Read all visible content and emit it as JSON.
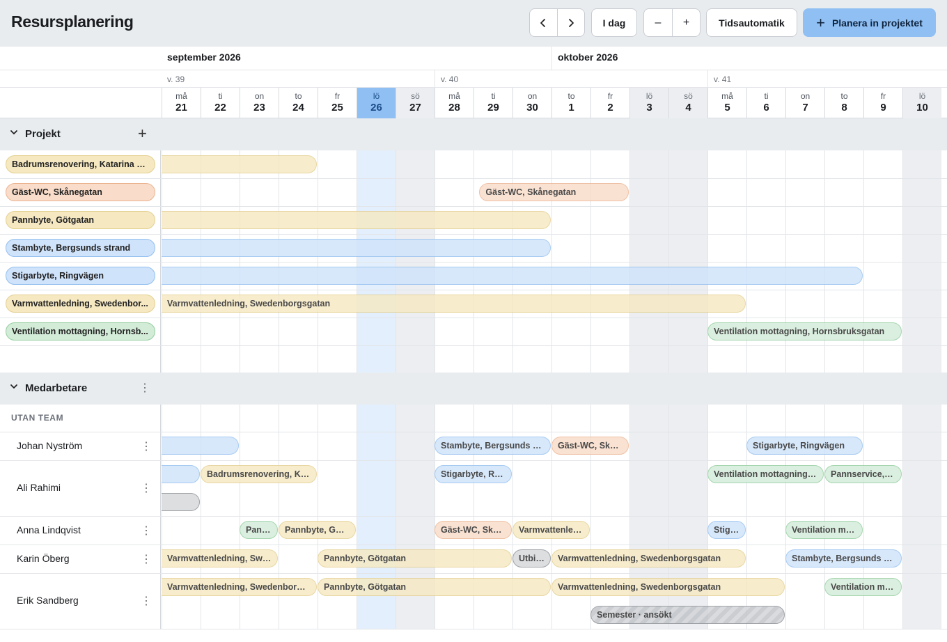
{
  "app": {
    "title": "Resursplanering"
  },
  "toolbar": {
    "prev_label": "‹",
    "next_label": "›",
    "today_label": "I dag",
    "zoom_out_label": "–",
    "zoom_in_label": "+",
    "auto_label": "Tidsautomatik",
    "plan_label": "Planera in projektet",
    "plan_icon": "+"
  },
  "calendar": {
    "months": [
      {
        "label": "september 2026"
      },
      {
        "label": "oktober 2026"
      }
    ],
    "weeks": [
      {
        "label": "v. 39"
      },
      {
        "label": "v. 40"
      },
      {
        "label": "v. 41"
      }
    ],
    "days": [
      {
        "name": "må",
        "date": "21"
      },
      {
        "name": "ti",
        "date": "22"
      },
      {
        "name": "on",
        "date": "23"
      },
      {
        "name": "to",
        "date": "24"
      },
      {
        "name": "fr",
        "date": "25"
      },
      {
        "name": "lö",
        "date": "26",
        "today": true
      },
      {
        "name": "sö",
        "date": "27",
        "weekend": true
      },
      {
        "name": "må",
        "date": "28"
      },
      {
        "name": "ti",
        "date": "29"
      },
      {
        "name": "on",
        "date": "30"
      },
      {
        "name": "to",
        "date": "1"
      },
      {
        "name": "fr",
        "date": "2"
      },
      {
        "name": "lö",
        "date": "3",
        "weekend": true
      },
      {
        "name": "sö",
        "date": "4",
        "weekend": true
      },
      {
        "name": "må",
        "date": "5"
      },
      {
        "name": "ti",
        "date": "6"
      },
      {
        "name": "on",
        "date": "7"
      },
      {
        "name": "to",
        "date": "8"
      },
      {
        "name": "fr",
        "date": "9"
      },
      {
        "name": "lö",
        "date": "10",
        "weekend": true
      }
    ]
  },
  "projects": {
    "label": "Projekt",
    "add_icon": "+",
    "rows": [
      {
        "name": "Badrumsrenovering, Katarina Bangata",
        "display": "Badrumsrenovering, Katarina B...",
        "color": "yellow",
        "bar_label": ""
      },
      {
        "name": "Gäst-WC, Skånegatan",
        "display": "Gäst-WC, Skånegatan",
        "color": "orange",
        "bar_label": "Gäst-WC, Skånegatan"
      },
      {
        "name": "Pannbyte, Götgatan",
        "display": "Pannbyte, Götgatan",
        "color": "yellow",
        "bar_label": ""
      },
      {
        "name": "Stambyte, Bergsunds strand",
        "display": "Stambyte, Bergsunds strand",
        "color": "blue",
        "bar_label": ""
      },
      {
        "name": "Stigarbyte, Ringvägen",
        "display": "Stigarbyte, Ringvägen",
        "color": "blue",
        "bar_label": ""
      },
      {
        "name": "Varmvattenledning, Swedenborgsgatan",
        "display": "Varmvattenledning, Swedenbor...",
        "color": "yellow",
        "bar_label": "Varmvattenledning, Swedenborgsgatan"
      },
      {
        "name": "Ventilation mottagning, Hornsbruksgatan",
        "display": "Ventilation mottagning, Hornsb...",
        "color": "green",
        "bar_label": "Ventilation mottagning, Hornsbruksgatan"
      }
    ]
  },
  "staff": {
    "label": "Medarbetare",
    "menu_icon": "⋮",
    "team_label": "UTAN TEAM",
    "people": [
      {
        "name": "Johan Nyström",
        "bookings": [
          {
            "label": "",
            "color": "blue"
          },
          {
            "label": "Stambyte, Bergsunds strand",
            "color": "blue"
          },
          {
            "label": "Gäst-WC, Skånegatan",
            "color": "orange"
          },
          {
            "label": "Stigarbyte, Ringvägen",
            "color": "blue"
          }
        ]
      },
      {
        "name": "Ali Rahimi",
        "bookings": [
          {
            "label": "",
            "color": "blue"
          },
          {
            "label": "Badrumsrenovering, Katarina Bangata",
            "color": "yellow"
          },
          {
            "label": "Stigarbyte, Ringvägen",
            "color": "blue"
          },
          {
            "label": "Ventilation mottagning, Hornsbruksgatan",
            "color": "green"
          },
          {
            "label": "Pannservice, Götgatan",
            "color": "green"
          },
          {
            "label": "",
            "color": "gray"
          }
        ]
      },
      {
        "name": "Anna Lindqvist",
        "bookings": [
          {
            "label": "Pannbyte, Götgatan",
            "color": "green"
          },
          {
            "label": "Pannbyte, Götgatan",
            "color": "yellow"
          },
          {
            "label": "Gäst-WC, Skånegatan",
            "color": "orange"
          },
          {
            "label": "Varmvattenledning, Swedenborgsgatan",
            "color": "yellow"
          },
          {
            "label": "Stigarbyte, Ringvägen",
            "color": "blue"
          },
          {
            "label": "Ventilation mottagning, Hornsbruksgatan",
            "color": "green"
          }
        ]
      },
      {
        "name": "Karin Öberg",
        "bookings": [
          {
            "label": "Varmvattenledning, Swedenborgsgatan",
            "color": "yellow"
          },
          {
            "label": "Pannbyte, Götgatan",
            "color": "yellow"
          },
          {
            "label": "Utbildning",
            "color": "gray"
          },
          {
            "label": "Varmvattenledning, Swedenborgsgatan",
            "color": "yellow"
          },
          {
            "label": "Stambyte, Bergsunds strand",
            "color": "blue"
          }
        ]
      },
      {
        "name": "Erik Sandberg",
        "bookings": [
          {
            "label": "Varmvattenledning, Swedenborgsgatan",
            "color": "yellow"
          },
          {
            "label": "Pannbyte, Götgatan",
            "color": "yellow"
          },
          {
            "label": "Varmvattenledning, Swedenborgsgatan",
            "color": "yellow"
          },
          {
            "label": "Ventilation mottagning, Hornsbruksgatan",
            "color": "green"
          },
          {
            "label": "Semester · ansökt",
            "color": "hatch"
          }
        ]
      }
    ]
  },
  "icons": {
    "chevron": "chevron-down-icon",
    "add": "plus-icon",
    "menu": "kebab-menu-icon"
  }
}
